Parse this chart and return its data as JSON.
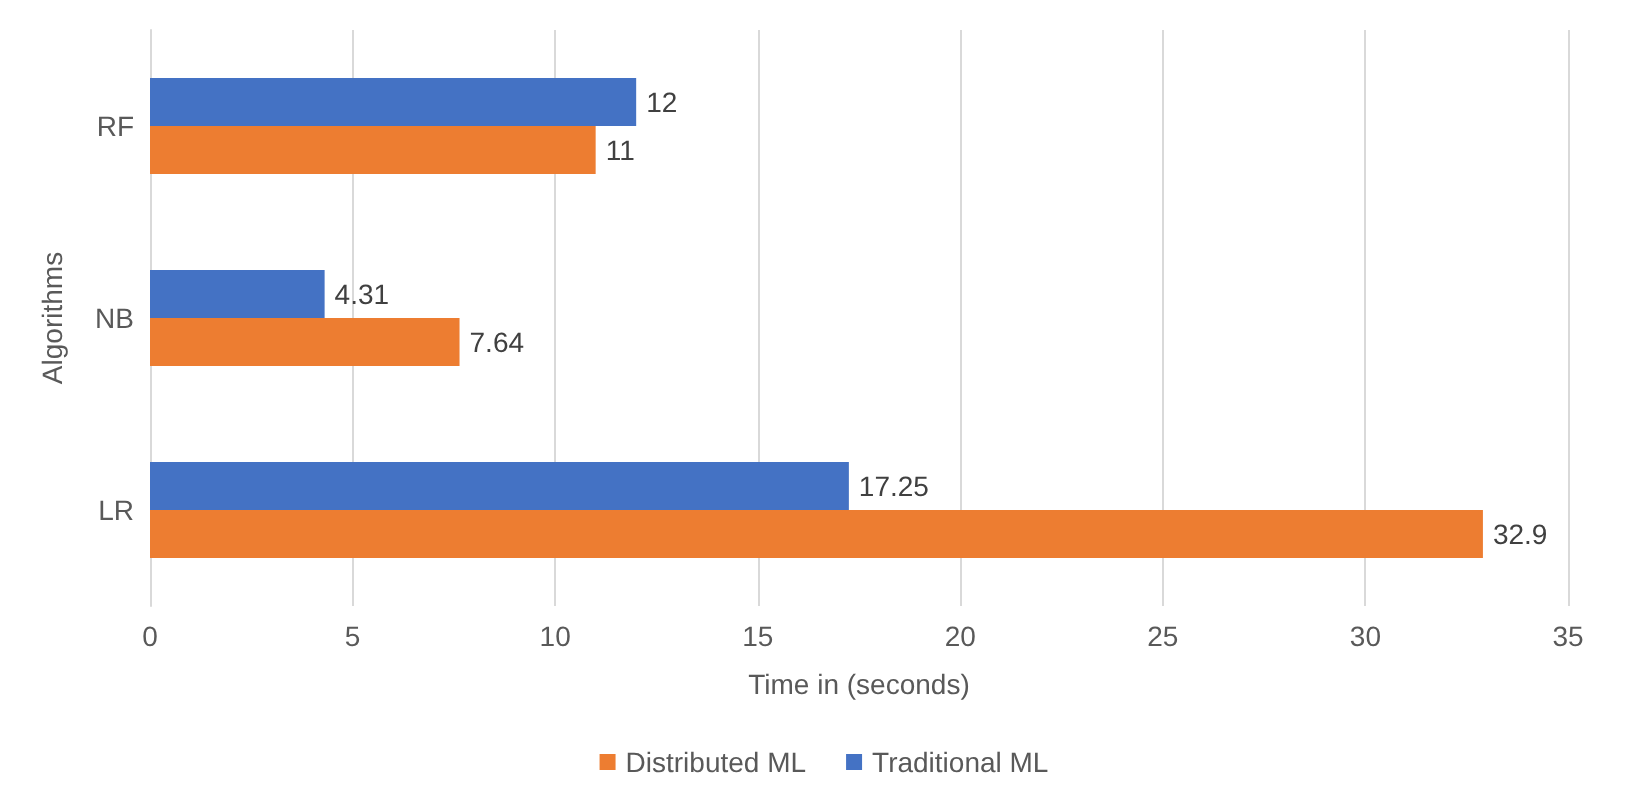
{
  "chart_data": {
    "type": "bar",
    "orientation": "horizontal",
    "xlabel": "Time in (seconds)",
    "ylabel": "Algorithms",
    "categories": [
      "RF",
      "NB",
      "LR"
    ],
    "series": [
      {
        "name": "Distributed ML",
        "color": "#ed7d31",
        "values": [
          11,
          7.64,
          32.9
        ]
      },
      {
        "name": "Traditional ML",
        "color": "#4472c4",
        "values": [
          12,
          4.31,
          17.25
        ]
      }
    ],
    "xlim": [
      0,
      35
    ],
    "xticks": [
      0,
      5,
      10,
      15,
      20,
      25,
      30,
      35
    ],
    "grid": "x",
    "legend": "bottom",
    "data_labels": true
  }
}
